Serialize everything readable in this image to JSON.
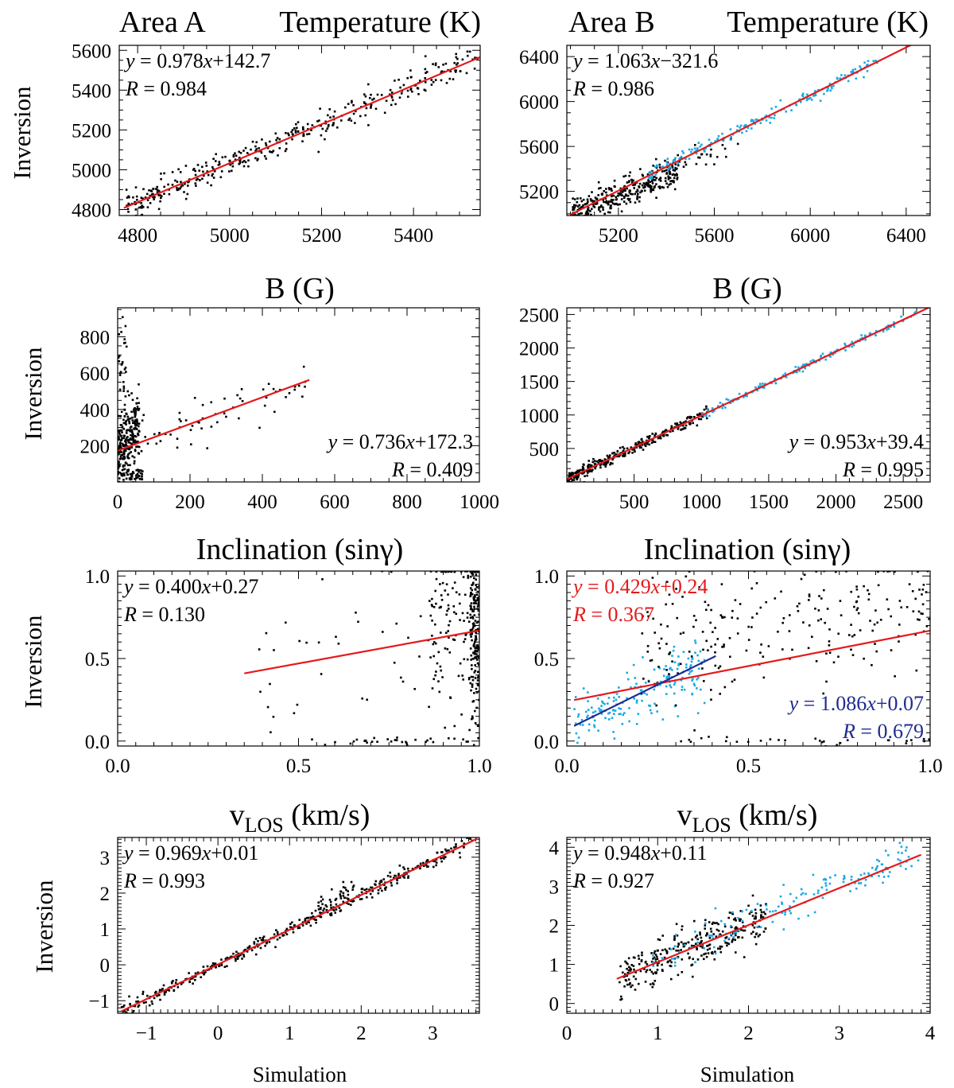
{
  "figure": {
    "area_labels": [
      "Area A",
      "Area B"
    ],
    "row_titles": [
      "Temperature (K)",
      "B (G)",
      "Inclination (sinγ)",
      "vLOS (km/s)"
    ],
    "ylabel": "Inversion",
    "xlabel": "Simulation"
  },
  "colors": {
    "fit": "#e41a1c",
    "fit2": "#1f2b8f",
    "points": "#000000",
    "points_b": "#19a9e6"
  },
  "chart_data": [
    {
      "id": "temp_a",
      "type": "scatter",
      "area": "Area A",
      "title": "Temperature (K)",
      "xlim": [
        4760,
        5545
      ],
      "ylim": [
        4770,
        5625
      ],
      "xticks": [
        4800,
        5000,
        5200,
        5400
      ],
      "yticks": [
        4800,
        5000,
        5200,
        5400,
        5600
      ],
      "xticks_labels": [
        "4800",
        "5000",
        "5200",
        "5400"
      ],
      "yticks_labels": [
        "4800",
        "5000",
        "5200",
        "5400",
        "5600"
      ],
      "xminor": 50,
      "yminor": 50,
      "fits": [
        {
          "slope": 0.978,
          "intercept": 142.7,
          "x": [
            4770,
            5545
          ],
          "equation": "0.978x+142.7",
          "r_text": "0.984",
          "color": "red",
          "eq_pos": "top-left"
        }
      ],
      "clouds": [
        {
          "color": "black",
          "n": 380,
          "xmin": 4775,
          "xmax": 5540,
          "slope": 0.978,
          "intercept": 142.7,
          "spread": 35,
          "skew": 1.3,
          "seed": 11
        }
      ]
    },
    {
      "id": "temp_b",
      "type": "scatter",
      "area": "Area B",
      "title": "Temperature (K)",
      "xlim": [
        4985,
        6500
      ],
      "ylim": [
        4985,
        6500
      ],
      "xticks": [
        5200,
        5600,
        6000,
        6400
      ],
      "yticks": [
        5200,
        5600,
        6000,
        6400
      ],
      "xticks_labels": [
        "5200",
        "5600",
        "6000",
        "6400"
      ],
      "yticks_labels": [
        "5200",
        "5600",
        "6000",
        "6400"
      ],
      "xminor": 100,
      "yminor": 100,
      "fits": [
        {
          "slope": 1.063,
          "intercept": -321.6,
          "x": [
            5000,
            6420
          ],
          "equation": "1.063x−321.6",
          "r_text": "0.986",
          "color": "red",
          "eq_pos": "top-left"
        }
      ],
      "clouds": [
        {
          "color": "black",
          "n": 330,
          "xmin": 5010,
          "xmax": 5450,
          "slope": 0.9,
          "intercept": 490,
          "spread": 70,
          "skew": 1.2,
          "seed": 21
        },
        {
          "color": "black",
          "n": 40,
          "xmin": 5400,
          "xmax": 5700,
          "slope": 1.0,
          "intercept": -30,
          "spread": 60,
          "skew": 1,
          "seed": 22
        },
        {
          "color": "blue",
          "n": 180,
          "xmin": 5320,
          "xmax": 6280,
          "slope": 1.03,
          "intercept": -130,
          "spread": 30,
          "skew": 1,
          "seed": 23
        }
      ]
    },
    {
      "id": "b_a",
      "type": "scatter",
      "area": "Area A",
      "title": "B (G)",
      "xlim": [
        0,
        1000
      ],
      "ylim": [
        0,
        960
      ],
      "xticks": [
        0,
        200,
        400,
        600,
        800,
        1000
      ],
      "yticks": [
        200,
        400,
        600,
        800
      ],
      "xticks_labels": [
        "0",
        "200",
        "400",
        "600",
        "800",
        "1000"
      ],
      "yticks_labels": [
        "200",
        "400",
        "600",
        "800"
      ],
      "xminor": 50,
      "yminor": 50,
      "fits": [
        {
          "slope": 0.736,
          "intercept": 172.3,
          "x": [
            0,
            530
          ],
          "equation": "0.736x+172.3",
          "r_text": "0.409",
          "color": "red",
          "eq_pos": "bottom-right"
        }
      ],
      "clouds": [
        {
          "color": "black",
          "n": 240,
          "xmin": 0,
          "xmax": 60,
          "slope": 2.5,
          "intercept": 170,
          "spread": 90,
          "skew": 1,
          "seed": 31
        },
        {
          "color": "black",
          "n": 30,
          "xmin": 2,
          "xmax": 25,
          "slope": 0,
          "intercept": 650,
          "spread": 170,
          "skew": 1,
          "seed": 32
        },
        {
          "color": "black",
          "n": 65,
          "xmin": 0,
          "xmax": 70,
          "slope": 0,
          "intercept": 30,
          "spread": 25,
          "skew": 1,
          "seed": 33
        },
        {
          "color": "black",
          "n": 60,
          "xmin": 60,
          "xmax": 530,
          "slope": 0.74,
          "intercept": 160,
          "spread": 65,
          "skew": 1,
          "seed": 34
        }
      ]
    },
    {
      "id": "b_b",
      "type": "scatter",
      "area": "Area B",
      "title": "B (G)",
      "xlim": [
        0,
        2700
      ],
      "ylim": [
        0,
        2600
      ],
      "xticks": [
        500,
        1000,
        1500,
        2000,
        2500
      ],
      "yticks": [
        500,
        1000,
        1500,
        2000,
        2500
      ],
      "xticks_labels": [
        "500",
        "1000",
        "1500",
        "2000",
        "2500"
      ],
      "yticks_labels": [
        "500",
        "1000",
        "1500",
        "2000",
        "2500"
      ],
      "xminor": 100,
      "yminor": 100,
      "fits": [
        {
          "slope": 0.953,
          "intercept": 39.4,
          "x": [
            0,
            2700
          ],
          "equation": "0.953x+39.4",
          "r_text": "0.995",
          "color": "red",
          "eq_pos": "bottom-right"
        }
      ],
      "clouds": [
        {
          "color": "black",
          "n": 320,
          "xmin": 10,
          "xmax": 1050,
          "slope": 0.95,
          "intercept": 40,
          "spread": 45,
          "skew": 1.5,
          "seed": 41
        },
        {
          "color": "blue",
          "n": 160,
          "xmin": 1000,
          "xmax": 2600,
          "slope": 0.955,
          "intercept": 38,
          "spread": 28,
          "skew": 1,
          "seed": 42
        }
      ]
    },
    {
      "id": "inc_a",
      "type": "scatter",
      "area": "Area A",
      "title": "Inclination (sinγ)",
      "xlim": [
        0,
        1
      ],
      "ylim": [
        -0.03,
        1.03
      ],
      "xticks": [
        0,
        0.5,
        1
      ],
      "yticks": [
        0,
        0.5,
        1
      ],
      "xticks_labels": [
        "0.0",
        "0.5",
        "1.0"
      ],
      "yticks_labels": [
        "0.0",
        "0.5",
        "1.0"
      ],
      "xminor": 0.05,
      "yminor": 0.05,
      "fits": [
        {
          "slope": 0.4,
          "intercept": 0.27,
          "x": [
            0.35,
            1.0
          ],
          "equation": "0.400x+0.27",
          "r_text": "0.130",
          "color": "red",
          "eq_pos": "top-left"
        }
      ],
      "clouds": [
        {
          "color": "black",
          "n": 210,
          "xmin": 0.975,
          "xmax": 1.0,
          "slope": 0,
          "intercept": 0.72,
          "spread": 0.3,
          "skew": 1,
          "seed": 51
        },
        {
          "color": "black",
          "n": 110,
          "xmin": 0.86,
          "xmax": 0.975,
          "slope": 0,
          "intercept": 0.7,
          "spread": 0.3,
          "skew": 1,
          "seed": 52
        },
        {
          "color": "black",
          "n": 40,
          "xmin": 0.38,
          "xmax": 0.86,
          "slope": 0,
          "intercept": 0.45,
          "spread": 0.35,
          "skew": 1,
          "seed": 53
        },
        {
          "color": "black",
          "n": 30,
          "xmin": 0.6,
          "xmax": 1.0,
          "slope": 0,
          "intercept": 0.0,
          "spread": 0.01,
          "skew": 1,
          "seed": 54
        }
      ]
    },
    {
      "id": "inc_b",
      "type": "scatter",
      "area": "Area B",
      "title": "Inclination (sinγ)",
      "xlim": [
        0,
        1
      ],
      "ylim": [
        -0.03,
        1.03
      ],
      "xticks": [
        0,
        0.5,
        1
      ],
      "yticks": [
        0,
        0.5,
        1
      ],
      "xticks_labels": [
        "0.0",
        "0.5",
        "1.0"
      ],
      "yticks_labels": [
        "0.0",
        "0.5",
        "1.0"
      ],
      "xminor": 0.05,
      "yminor": 0.05,
      "fits": [
        {
          "slope": 0.429,
          "intercept": 0.24,
          "x": [
            0.02,
            1.0
          ],
          "equation": "0.429x+0.24",
          "r_text": "0.367",
          "color": "red",
          "eq_pos": "top-left"
        },
        {
          "slope": 1.086,
          "intercept": 0.07,
          "x": [
            0.02,
            0.41
          ],
          "equation": "1.086x+0.07",
          "r_text": "0.679",
          "color": "navy",
          "eq_pos": "mid-right"
        }
      ],
      "clouds": [
        {
          "color": "blue",
          "n": 190,
          "xmin": 0.02,
          "xmax": 0.38,
          "slope": 1.05,
          "intercept": 0.07,
          "spread": 0.09,
          "skew": 1,
          "seed": 61
        },
        {
          "color": "black",
          "n": 230,
          "xmin": 0.2,
          "xmax": 1.0,
          "slope": 0.3,
          "intercept": 0.52,
          "spread": 0.22,
          "skew": 1,
          "seed": 62
        },
        {
          "color": "black",
          "n": 30,
          "xmin": 0.3,
          "xmax": 1.0,
          "slope": 0,
          "intercept": 0.0,
          "spread": 0.01,
          "skew": 1,
          "seed": 63
        }
      ]
    },
    {
      "id": "v_a",
      "type": "scatter",
      "area": "Area A",
      "title": "vLOS (km/s)",
      "xlim": [
        -1.4,
        3.65
      ],
      "ylim": [
        -1.35,
        3.55
      ],
      "xticks": [
        -1,
        0,
        1,
        2,
        3
      ],
      "yticks": [
        -1,
        0,
        1,
        2,
        3
      ],
      "xticks_labels": [
        "−1",
        "0",
        "1",
        "2",
        "3"
      ],
      "yticks_labels": [
        "−1",
        "0",
        "1",
        "2",
        "3"
      ],
      "xminor": 0.1,
      "yminor": 0.1,
      "fits": [
        {
          "slope": 0.969,
          "intercept": 0.01,
          "x": [
            -1.35,
            3.62
          ],
          "equation": "0.969x+0.01",
          "r_text": "0.993",
          "color": "red",
          "eq_pos": "top-left"
        }
      ],
      "clouds": [
        {
          "color": "black",
          "n": 380,
          "xmin": -1.35,
          "xmax": 3.6,
          "slope": 0.97,
          "intercept": 0.01,
          "spread": 0.1,
          "skew": 1,
          "seed": 71
        },
        {
          "color": "black",
          "n": 40,
          "xmin": 1.4,
          "xmax": 1.9,
          "slope": 0.97,
          "intercept": 0.25,
          "spread": 0.2,
          "skew": 1,
          "seed": 72
        }
      ]
    },
    {
      "id": "v_b",
      "type": "scatter",
      "area": "Area B",
      "title": "vLOS (km/s)",
      "xlim": [
        0,
        4
      ],
      "ylim": [
        -0.25,
        4.25
      ],
      "xticks": [
        0,
        1,
        2,
        3,
        4
      ],
      "yticks": [
        0,
        1,
        2,
        3,
        4
      ],
      "xticks_labels": [
        "0",
        "1",
        "2",
        "3",
        "4"
      ],
      "yticks_labels": [
        "0",
        "1",
        "2",
        "3",
        "4"
      ],
      "xminor": 0.1,
      "yminor": 0.1,
      "fits": [
        {
          "slope": 0.948,
          "intercept": 0.11,
          "x": [
            0.55,
            3.9
          ],
          "equation": "0.948x+0.11",
          "r_text": "0.927",
          "color": "red",
          "eq_pos": "top-left"
        }
      ],
      "clouds": [
        {
          "color": "black",
          "n": 300,
          "xmin": 0.55,
          "xmax": 2.2,
          "slope": 1.0,
          "intercept": 0.05,
          "spread": 0.28,
          "skew": 1,
          "seed": 81
        },
        {
          "color": "blue",
          "n": 150,
          "xmin": 0.9,
          "xmax": 3.9,
          "slope": 0.95,
          "intercept": 0.2,
          "spread": 0.22,
          "skew": 1,
          "seed": 82
        }
      ]
    }
  ]
}
